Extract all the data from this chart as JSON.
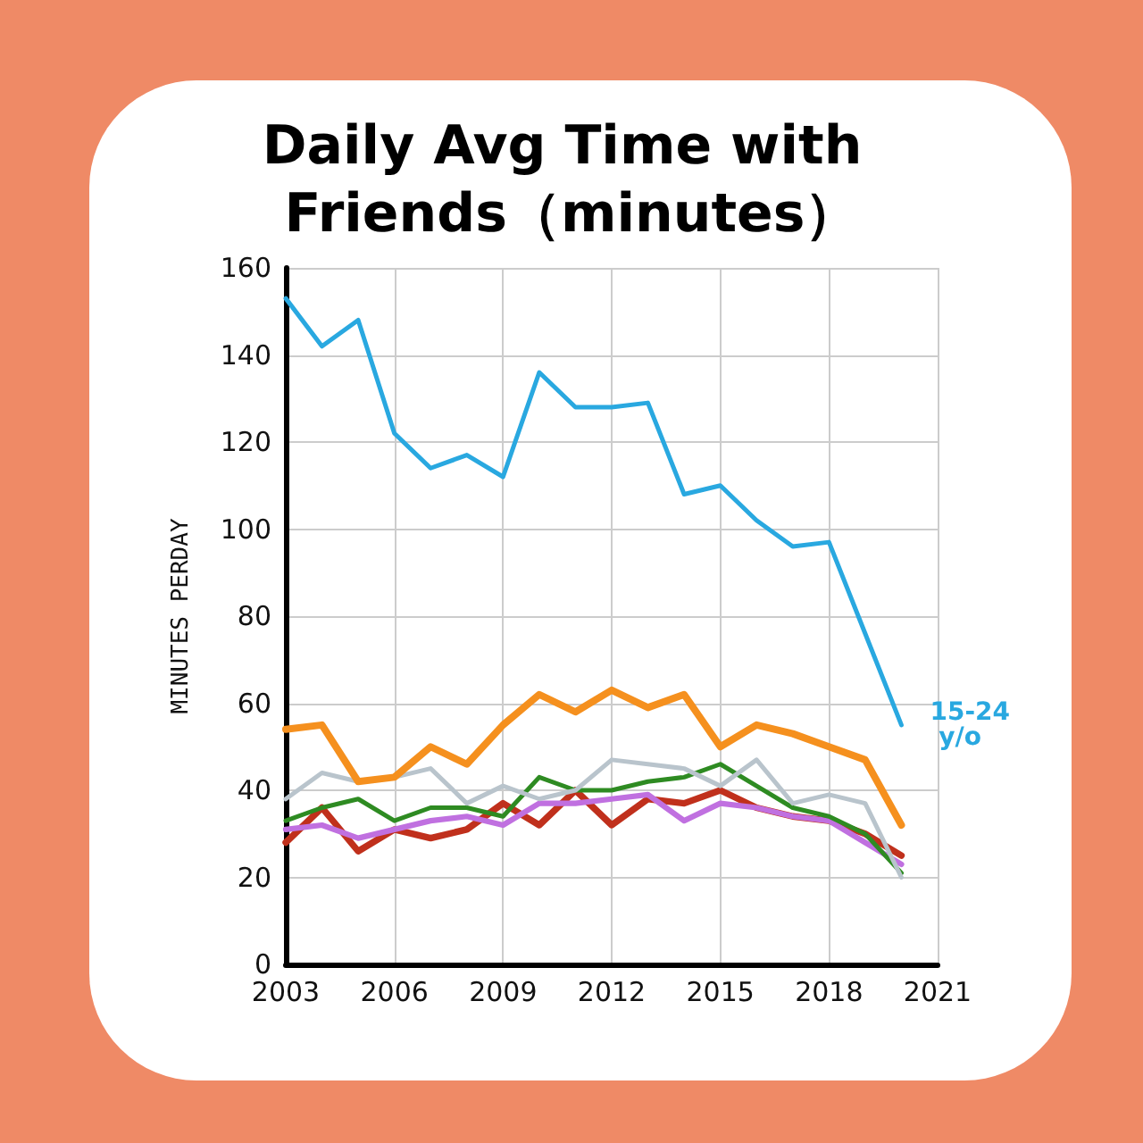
{
  "chart_data": {
    "type": "line",
    "title": "Daily Avg Time with Friends（minutes）",
    "ylabel": "MINUTES PERDAY",
    "x": [
      2003,
      2004,
      2005,
      2006,
      2007,
      2008,
      2009,
      2010,
      2011,
      2012,
      2013,
      2014,
      2015,
      2016,
      2017,
      2018,
      2019,
      2020
    ],
    "series": [
      {
        "name": "15-24 y/o",
        "color": "#29a8e0",
        "values": [
          153,
          142,
          148,
          122,
          114,
          117,
          112,
          136,
          128,
          128,
          129,
          108,
          110,
          102,
          96,
          97,
          76,
          55
        ]
      },
      {
        "color": "#f5901e",
        "values": [
          54,
          55,
          42,
          43,
          50,
          46,
          55,
          62,
          58,
          63,
          59,
          62,
          50,
          55,
          53,
          50,
          47,
          32
        ]
      },
      {
        "color": "#b9c4cc",
        "values": [
          38,
          44,
          42,
          43,
          45,
          37,
          41,
          38,
          40,
          47,
          46,
          45,
          41,
          47,
          37,
          39,
          37,
          20
        ]
      },
      {
        "color": "#2e8b22",
        "values": [
          33,
          36,
          38,
          33,
          36,
          36,
          34,
          43,
          40,
          40,
          42,
          43,
          46,
          41,
          36,
          34,
          30,
          21
        ]
      },
      {
        "color": "#c070e0",
        "values": [
          31,
          32,
          29,
          31,
          33,
          34,
          32,
          37,
          37,
          38,
          39,
          33,
          37,
          36,
          34,
          33,
          28,
          23
        ]
      },
      {
        "color": "#c0301c",
        "values": [
          28,
          36,
          26,
          31,
          29,
          31,
          37,
          32,
          40,
          32,
          38,
          37,
          40,
          36,
          34,
          33,
          30,
          25
        ]
      }
    ],
    "xlim": [
      2003,
      2021
    ],
    "xticks": [
      2003,
      2006,
      2009,
      2012,
      2015,
      2018,
      2021
    ],
    "ylim": [
      0,
      160
    ],
    "yticks": [
      0,
      20,
      40,
      60,
      80,
      100,
      120,
      140,
      160
    ],
    "grid": true,
    "legend": false,
    "marker": "none",
    "line_style": "solid"
  }
}
